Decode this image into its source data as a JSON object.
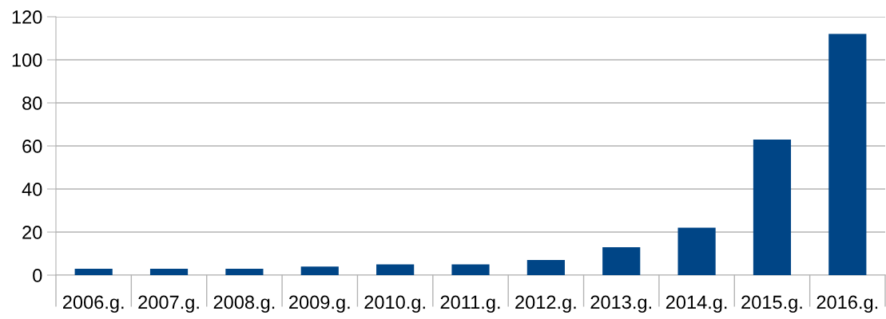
{
  "chart_data": {
    "type": "bar",
    "categories": [
      "2006.g.",
      "2007.g.",
      "2008.g.",
      "2009.g.",
      "2010.g.",
      "2011.g.",
      "2012.g.",
      "2013.g.",
      "2014.g.",
      "2015.g.",
      "2016.g."
    ],
    "values": [
      3,
      3,
      3,
      4,
      5,
      5,
      7,
      13,
      22,
      63,
      112
    ],
    "color": "#004586",
    "ylim": [
      0,
      120
    ],
    "yticks": [
      0,
      20,
      40,
      60,
      80,
      100,
      120
    ],
    "grid": "y",
    "legend": false
  }
}
